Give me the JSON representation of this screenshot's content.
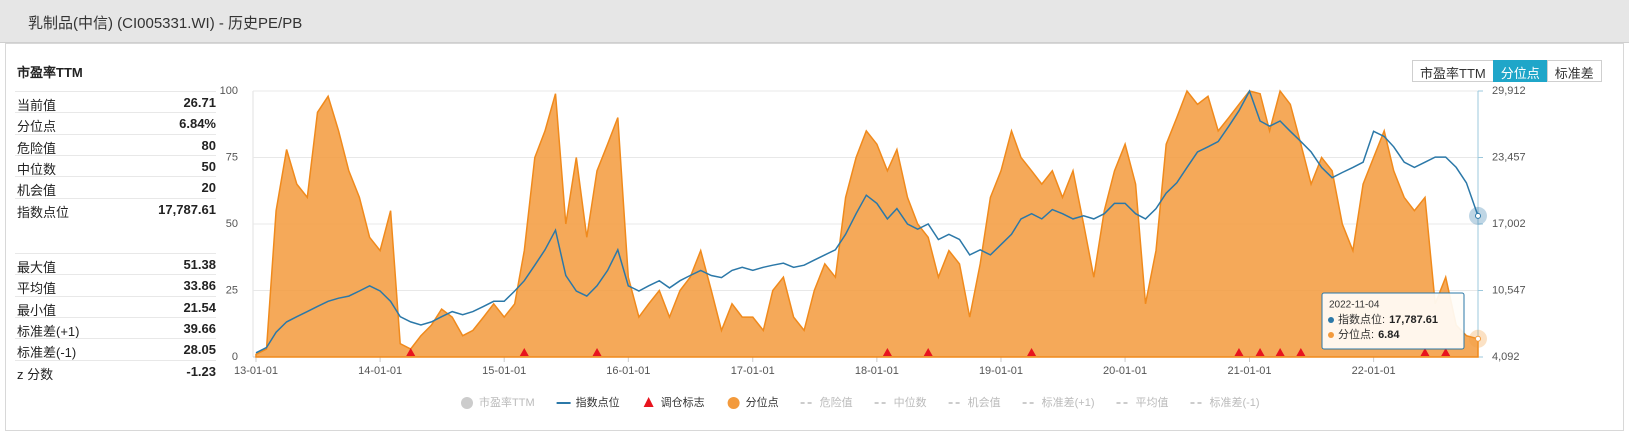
{
  "window_title": "乳制品(中信) (CI005331.WI) - 历史PE/PB",
  "buttons": [
    "市盈率TTM",
    "分位点",
    "标准差"
  ],
  "stats": {
    "title": "市盈率TTM",
    "groups": [
      [
        {
          "label": "当前值",
          "value": "26.71"
        },
        {
          "label": "分位点",
          "value": "6.84%"
        },
        {
          "label": "危险值",
          "value": "80"
        },
        {
          "label": "中位数",
          "value": "50"
        },
        {
          "label": "机会值",
          "value": "20"
        },
        {
          "label": "指数点位",
          "value": "17,787.61"
        }
      ],
      [
        {
          "label": "最大值",
          "value": "51.38"
        },
        {
          "label": "平均值",
          "value": "33.86"
        },
        {
          "label": "最小值",
          "value": "21.54"
        },
        {
          "label": "标准差(+1)",
          "value": "39.66"
        },
        {
          "label": "标准差(-1)",
          "value": "28.05"
        },
        {
          "label": "z 分数",
          "value": "-1.23"
        }
      ]
    ]
  },
  "chart_data": {
    "type": "area-line",
    "x": [
      "2013-01-01",
      "2013-02-01",
      "2013-03-01",
      "2013-04-01",
      "2013-05-01",
      "2013-06-01",
      "2013-07-01",
      "2013-08-01",
      "2013-09-01",
      "2013-10-01",
      "2013-11-01",
      "2013-12-01",
      "2014-01-01",
      "2014-02-01",
      "2014-03-01",
      "2014-04-01",
      "2014-05-01",
      "2014-06-01",
      "2014-07-01",
      "2014-08-01",
      "2014-09-01",
      "2014-10-01",
      "2014-11-01",
      "2014-12-01",
      "2015-01-01",
      "2015-02-01",
      "2015-03-01",
      "2015-04-01",
      "2015-05-01",
      "2015-06-01",
      "2015-07-01",
      "2015-08-01",
      "2015-09-01",
      "2015-10-01",
      "2015-11-01",
      "2015-12-01",
      "2016-01-01",
      "2016-02-01",
      "2016-03-01",
      "2016-04-01",
      "2016-05-01",
      "2016-06-01",
      "2016-07-01",
      "2016-08-01",
      "2016-09-01",
      "2016-10-01",
      "2016-11-01",
      "2016-12-01",
      "2017-01-01",
      "2017-02-01",
      "2017-03-01",
      "2017-04-01",
      "2017-05-01",
      "2017-06-01",
      "2017-07-01",
      "2017-08-01",
      "2017-09-01",
      "2017-10-01",
      "2017-11-01",
      "2017-12-01",
      "2018-01-01",
      "2018-02-01",
      "2018-03-01",
      "2018-04-01",
      "2018-05-01",
      "2018-06-01",
      "2018-07-01",
      "2018-08-01",
      "2018-09-01",
      "2018-10-01",
      "2018-11-01",
      "2018-12-01",
      "2019-01-01",
      "2019-02-01",
      "2019-03-01",
      "2019-04-01",
      "2019-05-01",
      "2019-06-01",
      "2019-07-01",
      "2019-08-01",
      "2019-09-01",
      "2019-10-01",
      "2019-11-01",
      "2019-12-01",
      "2020-01-01",
      "2020-02-01",
      "2020-03-01",
      "2020-04-01",
      "2020-05-01",
      "2020-06-01",
      "2020-07-01",
      "2020-08-01",
      "2020-09-01",
      "2020-10-01",
      "2020-11-01",
      "2020-12-01",
      "2021-01-01",
      "2021-02-01",
      "2021-03-01",
      "2021-04-01",
      "2021-05-01",
      "2021-06-01",
      "2021-07-01",
      "2021-08-01",
      "2021-09-01",
      "2021-10-01",
      "2021-11-01",
      "2021-12-01",
      "2022-01-01",
      "2022-02-01",
      "2022-03-01",
      "2022-04-01",
      "2022-05-01",
      "2022-06-01",
      "2022-07-01",
      "2022-08-01",
      "2022-09-01",
      "2022-10-01",
      "2022-11-04"
    ],
    "xlim": [
      "2013-01-01",
      "2022-11-04"
    ],
    "xticks": [
      {
        "value": "2013-01-01",
        "label": "13-01-01"
      },
      {
        "value": "2014-01-01",
        "label": "14-01-01"
      },
      {
        "value": "2015-01-01",
        "label": "15-01-01"
      },
      {
        "value": "2016-01-01",
        "label": "16-01-01"
      },
      {
        "value": "2017-01-01",
        "label": "17-01-01"
      },
      {
        "value": "2018-01-01",
        "label": "18-01-01"
      },
      {
        "value": "2019-01-01",
        "label": "19-01-01"
      },
      {
        "value": "2020-01-01",
        "label": "20-01-01"
      },
      {
        "value": "2021-01-01",
        "label": "21-01-01"
      },
      {
        "value": "2022-01-01",
        "label": "22-01-01"
      }
    ],
    "ylim": [
      0,
      100
    ],
    "yticks": [
      0,
      25,
      50,
      75,
      100
    ],
    "y2lim": [
      4092,
      29912
    ],
    "y2ticks": [
      {
        "value": 4092,
        "label": "4,092"
      },
      {
        "value": 10547,
        "label": "10,547"
      },
      {
        "value": 17002,
        "label": "17,002"
      },
      {
        "value": 23457,
        "label": "23,457"
      },
      {
        "value": 29912,
        "label": "29,912"
      }
    ],
    "grid": true,
    "series": [
      {
        "name": "指数点位",
        "kind": "line",
        "axis": "y2",
        "color": "#2b78a8",
        "values": [
          4500,
          5000,
          6500,
          7500,
          8000,
          8500,
          9000,
          9500,
          9800,
          10000,
          10500,
          11000,
          10500,
          9500,
          8000,
          7500,
          7200,
          7500,
          8000,
          8500,
          8200,
          8500,
          9000,
          9500,
          9500,
          10500,
          11500,
          13000,
          14500,
          16400,
          12000,
          10500,
          10000,
          11000,
          12500,
          14500,
          11000,
          10500,
          11000,
          11500,
          10800,
          11500,
          12000,
          12500,
          12000,
          11800,
          12500,
          12800,
          12500,
          12800,
          13000,
          13200,
          12800,
          13000,
          13500,
          14000,
          14500,
          16000,
          18000,
          19800,
          19000,
          17500,
          18500,
          17000,
          16500,
          17000,
          15500,
          16000,
          15500,
          14000,
          14500,
          14000,
          15000,
          16000,
          17500,
          18000,
          17500,
          18400,
          18000,
          17500,
          17800,
          17500,
          18000,
          19000,
          19000,
          18000,
          17500,
          18500,
          20000,
          21000,
          22500,
          24000,
          24500,
          25000,
          26500,
          28000,
          29900,
          27000,
          26500,
          27000,
          26000,
          25000,
          24000,
          22500,
          21500,
          22000,
          22500,
          23000,
          26000,
          25500,
          24500,
          23000,
          22500,
          23000,
          23500,
          23500,
          22500,
          21000,
          17787.61
        ]
      },
      {
        "name": "调仓标志",
        "kind": "marker",
        "color": "#e8141e",
        "dates": [
          "2014-04-01",
          "2015-03-01",
          "2015-10-01",
          "2018-02-01",
          "2018-06-01",
          "2019-04-01",
          "2020-12-01",
          "2021-02-01",
          "2021-04-01",
          "2021-06-01",
          "2022-06-01",
          "2022-08-01"
        ]
      },
      {
        "name": "分位点",
        "kind": "area",
        "axis": "y",
        "color": "#f39a3c",
        "values": [
          1,
          3,
          55,
          78,
          65,
          60,
          92,
          98,
          85,
          70,
          60,
          45,
          40,
          55,
          5,
          3,
          8,
          12,
          18,
          15,
          8,
          10,
          15,
          20,
          15,
          20,
          40,
          75,
          85,
          99,
          50,
          75,
          45,
          70,
          80,
          90,
          30,
          15,
          20,
          25,
          15,
          25,
          30,
          40,
          25,
          10,
          20,
          15,
          15,
          10,
          25,
          30,
          15,
          10,
          25,
          35,
          30,
          60,
          75,
          85,
          80,
          70,
          78,
          60,
          50,
          45,
          30,
          40,
          35,
          15,
          35,
          60,
          70,
          85,
          75,
          70,
          65,
          70,
          60,
          70,
          50,
          30,
          55,
          70,
          80,
          65,
          20,
          40,
          80,
          90,
          100,
          95,
          98,
          85,
          90,
          95,
          100,
          99,
          85,
          100,
          95,
          80,
          65,
          75,
          70,
          50,
          40,
          65,
          75,
          85,
          70,
          60,
          55,
          60,
          20,
          30,
          12,
          8,
          6.84
        ]
      }
    ],
    "disabled_legend": {
      "before": [
        "市盈率TTM"
      ],
      "after": [
        "危险值",
        "中位数",
        "机会值",
        "标准差(+1)",
        "平均值",
        "标准差(-1)"
      ]
    },
    "tooltip": {
      "date": "2022-11-04",
      "rows": [
        {
          "label": "指数点位:",
          "value": "17,787.61"
        },
        {
          "label": "分位点:",
          "value": "6.84"
        }
      ]
    }
  }
}
